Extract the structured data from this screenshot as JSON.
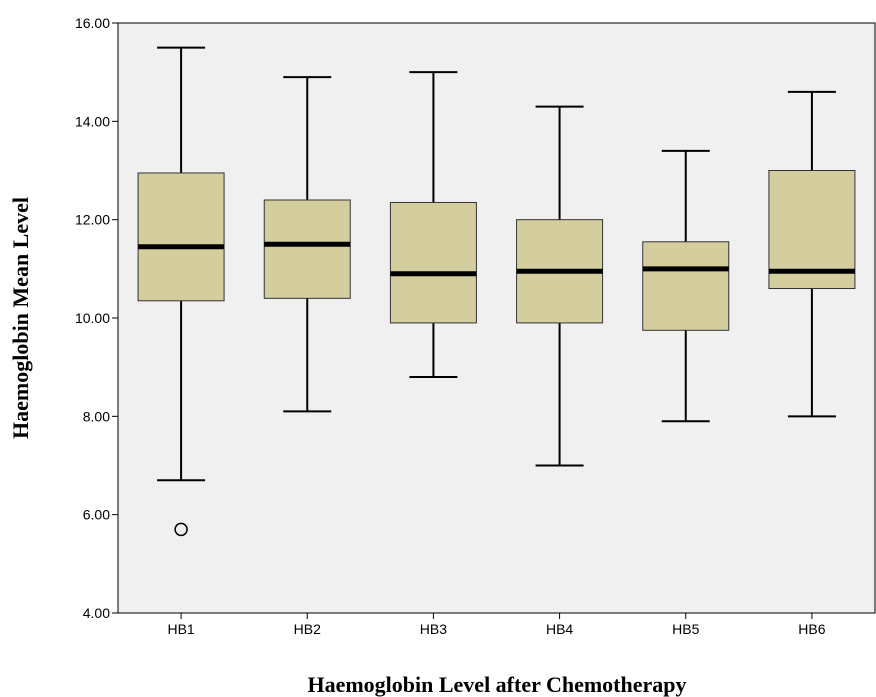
{
  "chart_data": {
    "type": "box",
    "title": "",
    "xlabel": "Haemoglobin Level after Chemotherapy",
    "ylabel": "Haemoglobin Mean Level",
    "ylim": [
      4.0,
      16.0
    ],
    "yticks": [
      "4.00",
      "6.00",
      "8.00",
      "10.00",
      "12.00",
      "14.00",
      "16.00"
    ],
    "grid": false,
    "colors": {
      "box_fill": "#d4ce9f",
      "plot_bg": "#f0f0f0",
      "stroke": "#000000"
    },
    "categories": [
      "HB1",
      "HB2",
      "HB3",
      "HB4",
      "HB5",
      "HB6"
    ],
    "boxes": [
      {
        "category": "HB1",
        "min": 6.7,
        "q1": 10.35,
        "median": 11.45,
        "q3": 12.95,
        "max": 15.5,
        "outliers": [
          5.7
        ]
      },
      {
        "category": "HB2",
        "min": 8.1,
        "q1": 10.4,
        "median": 11.5,
        "q3": 12.4,
        "max": 14.9,
        "outliers": []
      },
      {
        "category": "HB3",
        "min": 8.8,
        "q1": 9.9,
        "median": 10.9,
        "q3": 12.35,
        "max": 15.0,
        "outliers": []
      },
      {
        "category": "HB4",
        "min": 7.0,
        "q1": 9.9,
        "median": 10.95,
        "q3": 12.0,
        "max": 14.3,
        "outliers": []
      },
      {
        "category": "HB5",
        "min": 7.9,
        "q1": 9.75,
        "median": 11.0,
        "q3": 11.55,
        "max": 13.4,
        "outliers": []
      },
      {
        "category": "HB6",
        "min": 8.0,
        "q1": 10.6,
        "median": 10.95,
        "q3": 13.0,
        "max": 14.6,
        "outliers": []
      }
    ]
  }
}
